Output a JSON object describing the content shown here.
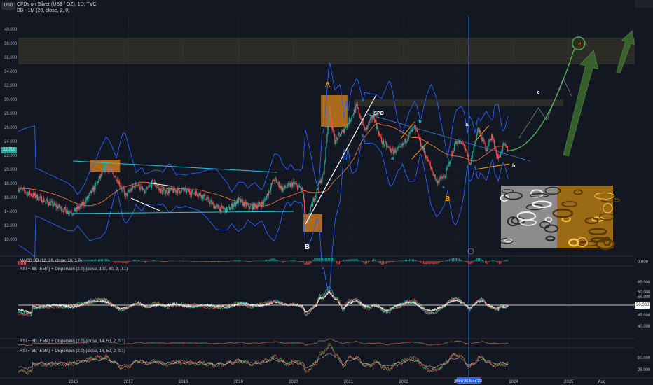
{
  "header": {
    "symbol_badge": "USD",
    "title": "CFDs on Silver (US$ / OZ), 1D, TVC",
    "indicator": "BB - 1M (20, close, 2, 0)"
  },
  "colors": {
    "background": "#131722",
    "grid": "#1e222d",
    "axis_text": "#b2b5be",
    "up_candle": "#26a69a",
    "down_candle": "#ef5350",
    "bb_band": "#2962ff",
    "bb_basis": "#e8743b",
    "triangle": "#26c6da",
    "wave_orange": "#ff9800",
    "projection": "#4caf50",
    "last_price_tag": "#26a69a"
  },
  "panes": {
    "macd": {
      "title": "MACD BB (12, 26, close, 10, 1.0)",
      "axis_label": "0.000"
    },
    "rsi": {
      "title": "RSI + BB (EMA) + Dispersion (2.0) (close, 100, 80, 2, 0.1)",
      "axis_labels": [
        "65.000",
        "60.000",
        "55.000",
        "45.000",
        "40.000"
      ],
      "current_value": "50.080"
    },
    "rsi2": {
      "title": "RSI + BB (EMA) + Dispersion (2.0) (close, 14, 50, 2, 0.1)"
    },
    "rsi3": {
      "title": "RSI + BB (EMA) + Dispersion (2.0) (close, 14, 50, 2, 0.1)",
      "axis_labels": [
        "50.000",
        "25.000"
      ]
    }
  },
  "chart_data": {
    "type": "candlestick",
    "title": "CFDs on Silver (US$ / OZ), 1D, TVC",
    "x_axis": {
      "start": 2015.0,
      "end": 2026.2,
      "tick_labels": [
        "2016",
        "2017",
        "2018",
        "2019",
        "2020",
        "2021",
        "2022",
        "2023",
        "Wed 06 Mar '23",
        "2024",
        "2025",
        "Aug"
      ],
      "tick_positions": [
        2016.0,
        2017.0,
        2018.0,
        2019.0,
        2020.0,
        2021.0,
        2022.0,
        2023.0,
        2023.18,
        2024.0,
        2025.0,
        2025.6
      ]
    },
    "y_axis": {
      "min": 8.0,
      "max": 42.0,
      "scale": "linear",
      "tick_labels": [
        "40.000",
        "38.000",
        "36.000",
        "34.000",
        "32.000",
        "30.000",
        "28.000",
        "26.000",
        "24.000",
        "22.000",
        "20.000",
        "18.000",
        "16.000",
        "14.000",
        "12.000",
        "10.000"
      ],
      "tick_values": [
        40,
        38,
        36,
        34,
        32,
        30,
        28,
        26,
        24,
        22,
        20,
        18,
        16,
        14,
        12,
        10
      ]
    },
    "last_price": {
      "value": 22.7,
      "label": "22.700"
    },
    "price_path": [
      [
        2015.0,
        17.3
      ],
      [
        2015.3,
        16.2
      ],
      [
        2015.6,
        15.1
      ],
      [
        2015.9,
        14.0
      ],
      [
        2016.0,
        13.9
      ],
      [
        2016.2,
        15.2
      ],
      [
        2016.4,
        17.6
      ],
      [
        2016.6,
        20.5
      ],
      [
        2016.8,
        18.6
      ],
      [
        2016.95,
        16.2
      ],
      [
        2017.15,
        18.0
      ],
      [
        2017.3,
        16.6
      ],
      [
        2017.45,
        18.2
      ],
      [
        2017.6,
        16.8
      ],
      [
        2017.8,
        17.0
      ],
      [
        2018.0,
        17.0
      ],
      [
        2018.3,
        16.5
      ],
      [
        2018.6,
        14.6
      ],
      [
        2018.8,
        14.2
      ],
      [
        2019.0,
        15.6
      ],
      [
        2019.2,
        14.6
      ],
      [
        2019.45,
        15.1
      ],
      [
        2019.65,
        18.6
      ],
      [
        2019.8,
        17.2
      ],
      [
        2020.0,
        18.0
      ],
      [
        2020.17,
        17.0
      ],
      [
        2020.22,
        12.0
      ],
      [
        2020.4,
        16.5
      ],
      [
        2020.55,
        19.5
      ],
      [
        2020.65,
        28.5
      ],
      [
        2020.75,
        24.0
      ],
      [
        2020.9,
        25.5
      ],
      [
        2021.05,
        27.5
      ],
      [
        2021.15,
        29.0
      ],
      [
        2021.3,
        25.5
      ],
      [
        2021.45,
        27.8
      ],
      [
        2021.6,
        24.0
      ],
      [
        2021.8,
        22.5
      ],
      [
        2021.95,
        23.0
      ],
      [
        2022.1,
        25.0
      ],
      [
        2022.2,
        26.0
      ],
      [
        2022.4,
        22.0
      ],
      [
        2022.6,
        18.3
      ],
      [
        2022.75,
        19.0
      ],
      [
        2022.95,
        24.0
      ],
      [
        2023.1,
        23.5
      ],
      [
        2023.2,
        20.5
      ],
      [
        2023.35,
        25.8
      ],
      [
        2023.5,
        23.0
      ],
      [
        2023.6,
        24.8
      ],
      [
        2023.72,
        21.5
      ],
      [
        2023.82,
        23.5
      ],
      [
        2023.9,
        22.7
      ]
    ],
    "annotations": [
      {
        "label": "A",
        "x": 2020.62,
        "y": 31.8,
        "color": "#ff9800"
      },
      {
        "label": "B",
        "x": 2020.25,
        "y": 8.6,
        "color": "#ffffff"
      },
      {
        "label": "B",
        "x": 2022.8,
        "y": 15.5,
        "color": "#ff9800"
      },
      {
        "label": "SPD",
        "x": 2021.55,
        "y": 27.8,
        "color": "#ffffff"
      },
      {
        "label": "a",
        "x": 2021.8,
        "y": 21.4,
        "color": "#26c6da"
      },
      {
        "label": "b",
        "x": 2022.3,
        "y": 26.6,
        "color": "#26c6da"
      },
      {
        "label": "c",
        "x": 2022.73,
        "y": 17.3,
        "color": "#26c6da"
      },
      {
        "label": "a",
        "x": 2023.15,
        "y": 26.2,
        "color": "#ffffff"
      },
      {
        "label": "b",
        "x": 2024.0,
        "y": 20.3,
        "color": "#ffffff"
      },
      {
        "label": "c",
        "x": 2024.45,
        "y": 30.8,
        "color": "#ffffff"
      },
      {
        "label": "c",
        "x": 2025.2,
        "y": 37.7,
        "color": "#ff9800"
      }
    ],
    "zones": [
      {
        "x1": 2015.0,
        "x2": 2026.2,
        "y1": 35.0,
        "y2": 38.8
      },
      {
        "x1": 2021.1,
        "x2": 2024.9,
        "y1": 29.0,
        "y2": 30.0
      }
    ],
    "legend": "none",
    "grid": true
  }
}
